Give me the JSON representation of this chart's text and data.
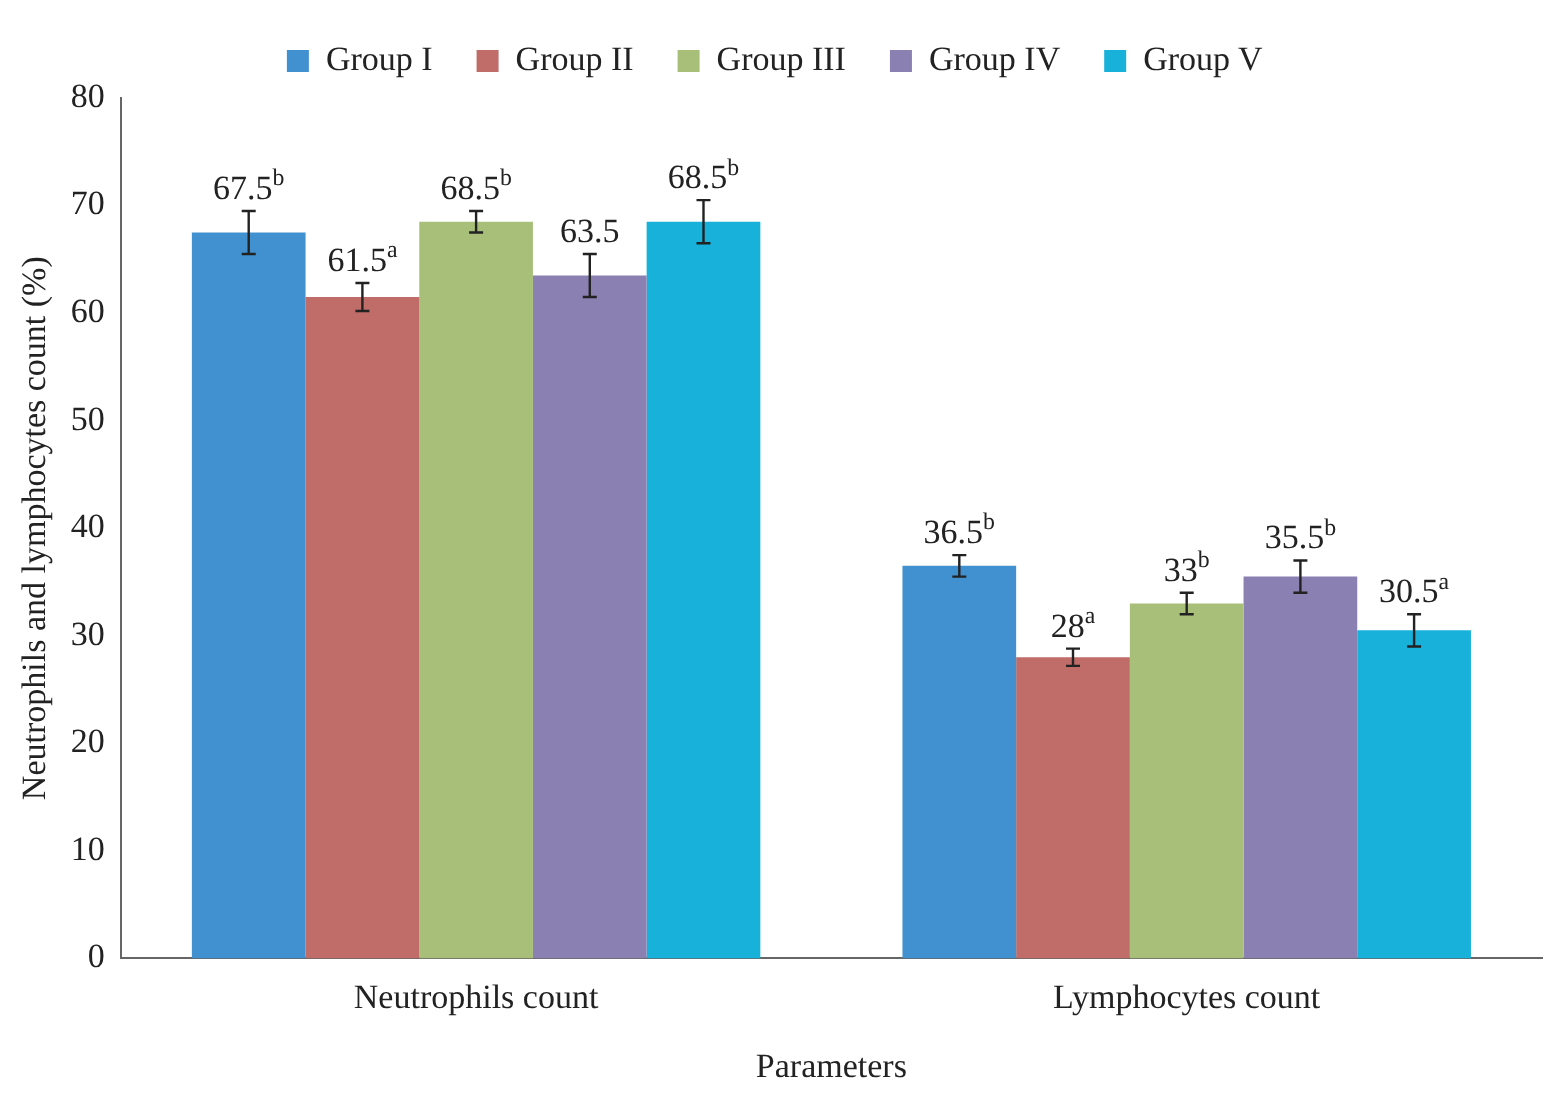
{
  "chart_data": {
    "type": "bar",
    "xlabel": "Parameters",
    "ylabel": "Neutrophils and lymphocytes count (%)",
    "categories": [
      "Neutrophils count",
      "Lymphocytes count"
    ],
    "ylim": [
      0,
      80
    ],
    "yticks": [
      0,
      10,
      20,
      30,
      40,
      50,
      60,
      70,
      80
    ],
    "grid": false,
    "legend": "top",
    "series": [
      {
        "name": "Group I",
        "color": "#4190d0",
        "values": [
          67.5,
          36.5
        ],
        "errors": [
          2,
          1
        ],
        "value_labels": [
          "67.5$^{b}$",
          "36.5$^{b}$"
        ]
      },
      {
        "name": "Group II",
        "color": "#c06c68",
        "values": [
          61.5,
          28
        ],
        "errors": [
          1.3,
          0.8
        ],
        "value_labels": [
          "61.5$^{a}$",
          "28$^{a}$"
        ]
      },
      {
        "name": "Group III",
        "color": "#a7bf79",
        "values": [
          68.5,
          33
        ],
        "errors": [
          1,
          1
        ],
        "value_labels": [
          "68.5$^{b}$",
          "33$^{b}$"
        ]
      },
      {
        "name": "Group IV",
        "color": "#8a80b1",
        "values": [
          63.5,
          35.5
        ],
        "errors": [
          2,
          1.5
        ],
        "value_labels": [
          "63.5",
          "35.5$^{b}$"
        ]
      },
      {
        "name": "Group V",
        "color": "#17b1da",
        "values": [
          68.5,
          30.5
        ],
        "errors": [
          2,
          1.5
        ],
        "value_labels": [
          "68.5$^{b}$",
          "30.5$^{a}$"
        ]
      }
    ]
  }
}
